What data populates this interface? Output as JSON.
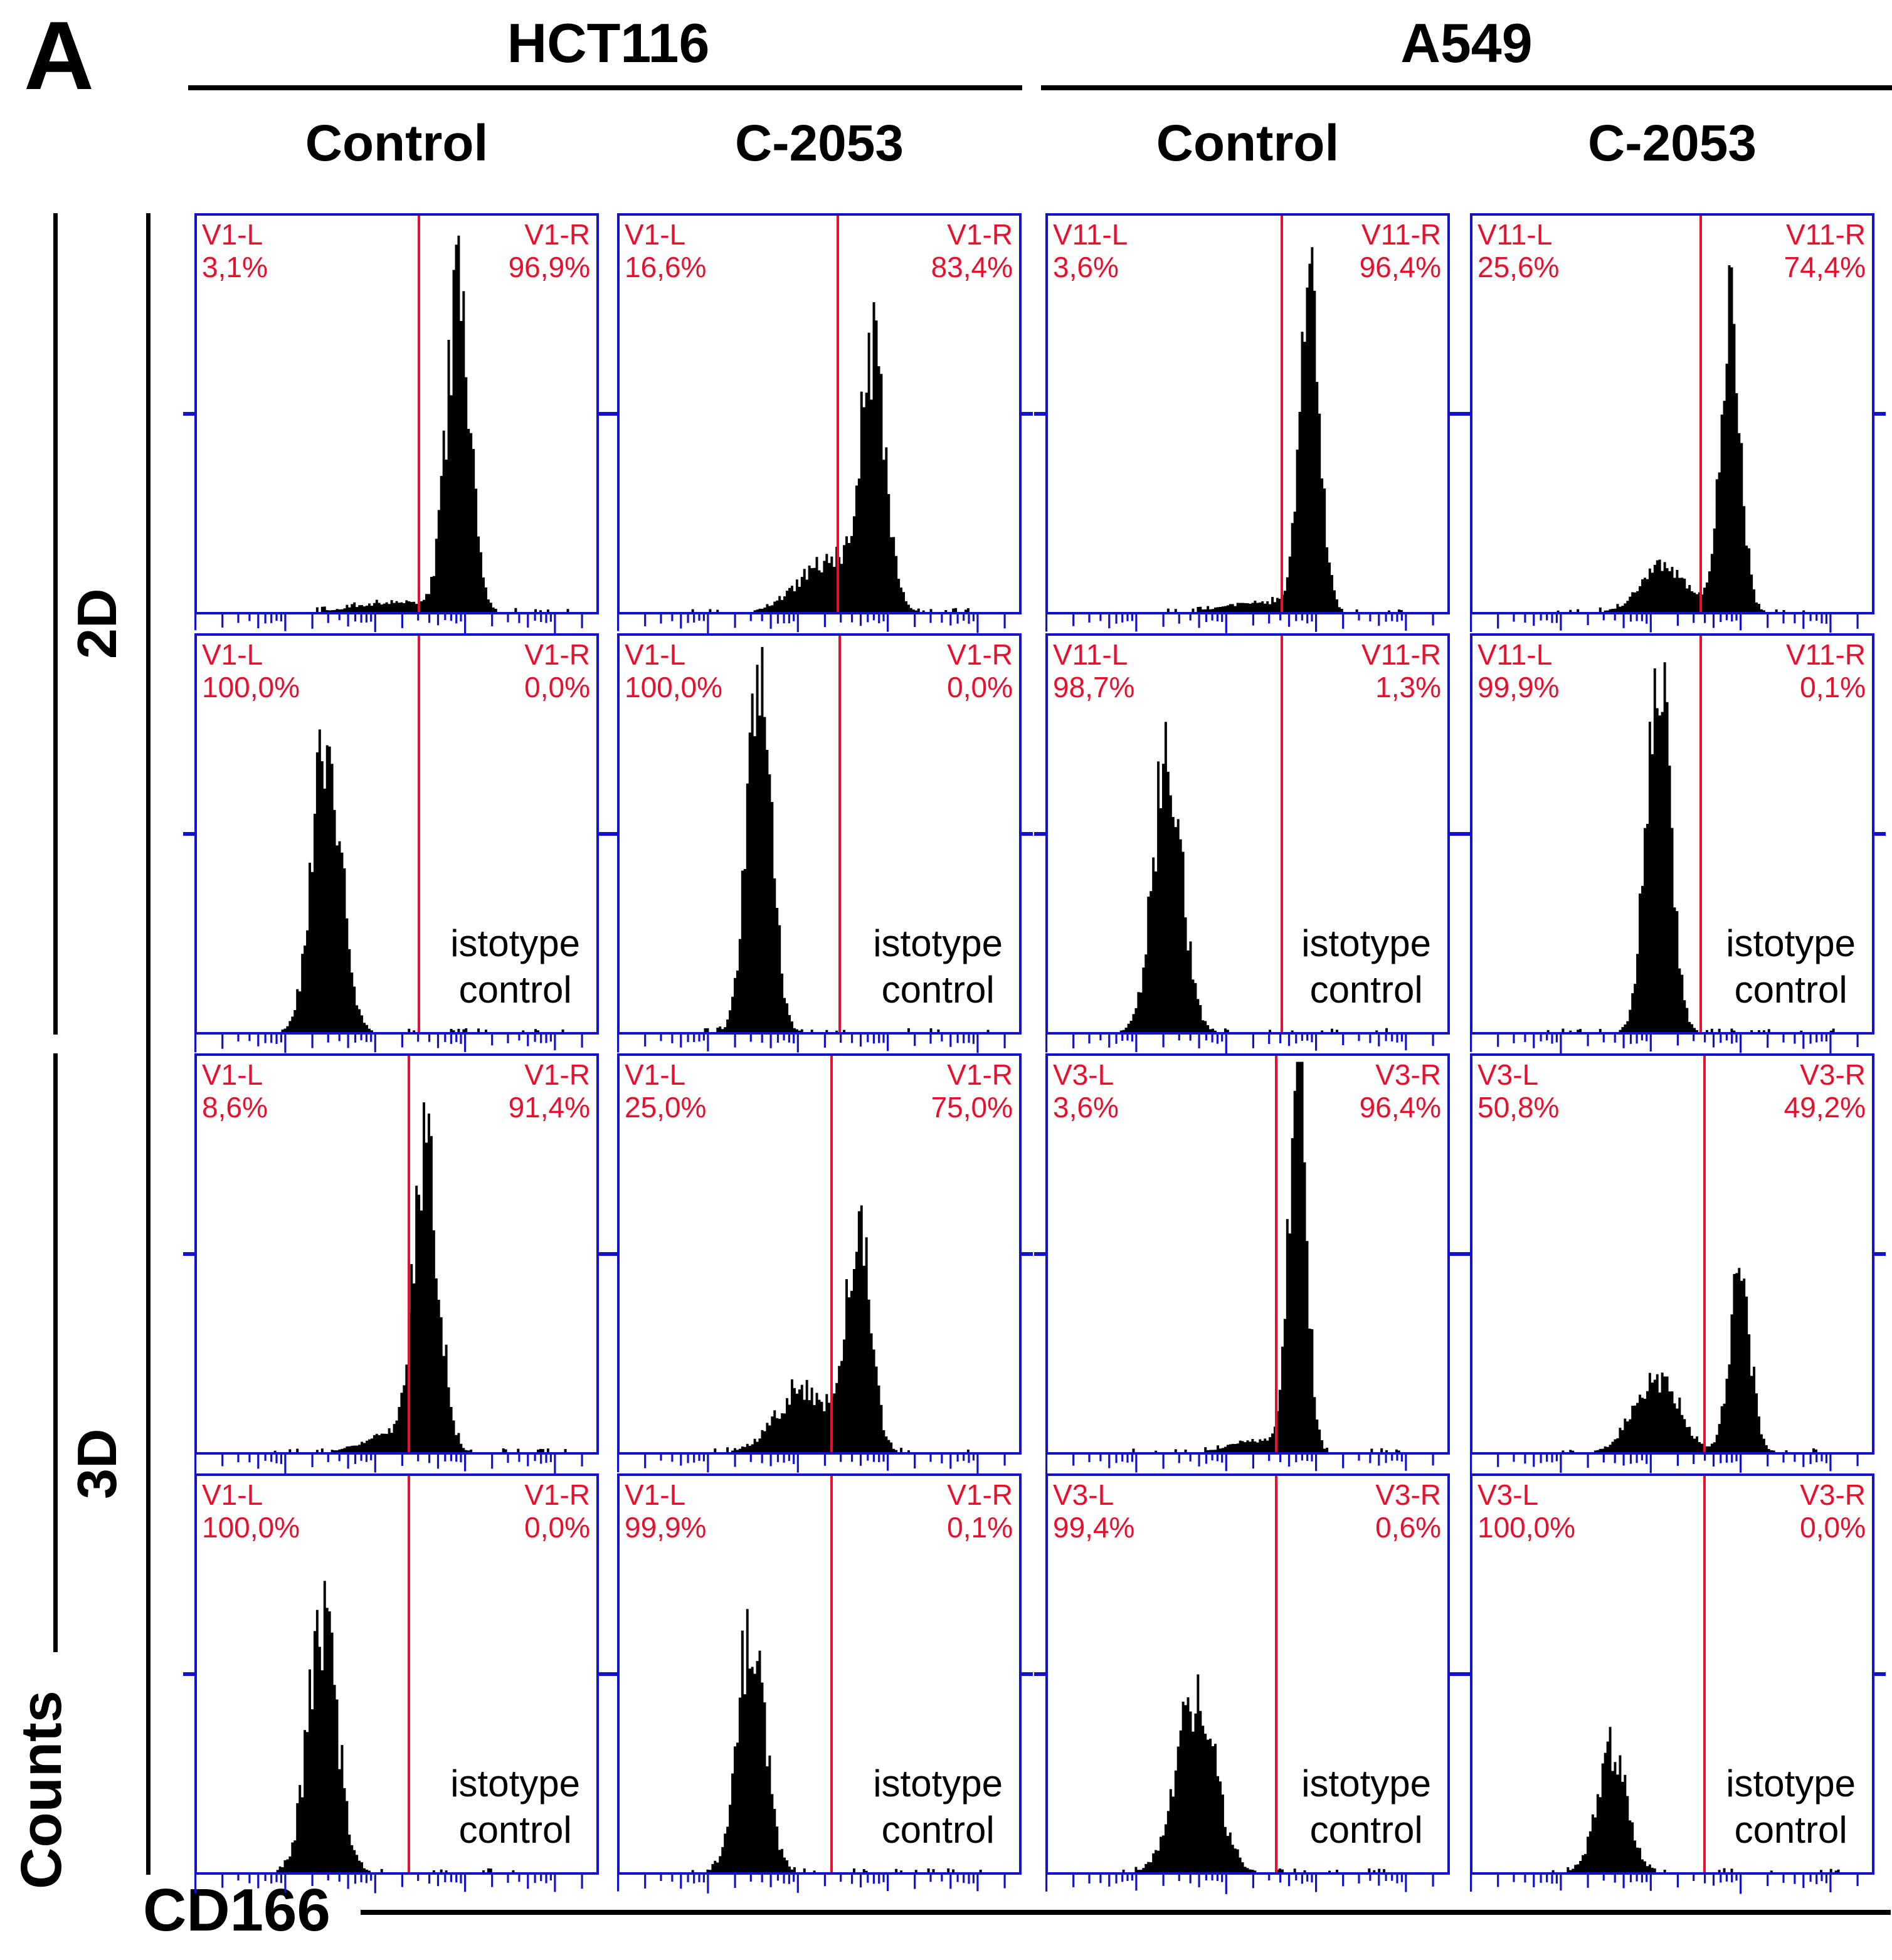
{
  "figure": {
    "panel_letter": "A",
    "cell_lines": [
      {
        "name": "HCT116"
      },
      {
        "name": "A549"
      }
    ],
    "treatments": [
      {
        "label": "Control"
      },
      {
        "label": "C-2053"
      },
      {
        "label": "Control"
      },
      {
        "label": "C-2053"
      }
    ],
    "row_groups": [
      {
        "label": "2D"
      },
      {
        "label": "3D"
      }
    ],
    "y_axis_label": "Counts",
    "x_axis_label": "CD166",
    "isotype_note_line1": "istotype",
    "isotype_note_line2": "control"
  },
  "colors": {
    "gate_red": "#e8112d",
    "frame_blue": "#1212cc",
    "histogram_black": "#000000",
    "text_black": "#000000"
  },
  "chart_data": [
    {
      "type": "histogram",
      "cell_line": "HCT116",
      "treatment": "Control",
      "culture": "2D",
      "isotype_control": false,
      "xlabel": "CD166",
      "ylabel": "Counts",
      "gates": {
        "left": {
          "name": "V1-L",
          "percent": "3,1%"
        },
        "right": {
          "name": "V1-R",
          "percent": "96,9%"
        }
      },
      "gate_x_fraction": 0.555,
      "peaks": [
        {
          "center": 0.655,
          "sigma": 0.03,
          "height": 0.8
        },
        {
          "center": 0.5,
          "sigma": 0.09,
          "height": 0.025
        }
      ]
    },
    {
      "type": "histogram",
      "cell_line": "HCT116",
      "treatment": "C-2053",
      "culture": "2D",
      "isotype_control": false,
      "xlabel": "CD166",
      "ylabel": "Counts",
      "gates": {
        "left": {
          "name": "V1-L",
          "percent": "16,6%"
        },
        "right": {
          "name": "V1-R",
          "percent": "83,4%"
        }
      },
      "gate_x_fraction": 0.545,
      "peaks": [
        {
          "center": 0.635,
          "sigma": 0.032,
          "height": 0.62
        },
        {
          "center": 0.52,
          "sigma": 0.07,
          "height": 0.13
        }
      ]
    },
    {
      "type": "histogram",
      "cell_line": "A549",
      "treatment": "Control",
      "culture": "2D",
      "isotype_control": false,
      "xlabel": "CD166",
      "ylabel": "Counts",
      "gates": {
        "left": {
          "name": "V11-L",
          "percent": "3,6%"
        },
        "right": {
          "name": "V11-R",
          "percent": "96,4%"
        }
      },
      "gate_x_fraction": 0.585,
      "peaks": [
        {
          "center": 0.655,
          "sigma": 0.026,
          "height": 0.79
        },
        {
          "center": 0.53,
          "sigma": 0.08,
          "height": 0.025
        }
      ]
    },
    {
      "type": "histogram",
      "cell_line": "A549",
      "treatment": "C-2053",
      "culture": "2D",
      "isotype_control": false,
      "xlabel": "CD166",
      "ylabel": "Counts",
      "gates": {
        "left": {
          "name": "V11-L",
          "percent": "25,6%"
        },
        "right": {
          "name": "V11-R",
          "percent": "74,4%"
        }
      },
      "gate_x_fraction": 0.57,
      "peaks": [
        {
          "center": 0.645,
          "sigma": 0.026,
          "height": 0.73
        },
        {
          "center": 0.48,
          "sigma": 0.055,
          "height": 0.12
        }
      ]
    },
    {
      "type": "histogram",
      "cell_line": "HCT116",
      "treatment": "Control",
      "culture": "2D",
      "isotype_control": true,
      "xlabel": "CD166",
      "ylabel": "Counts",
      "gates": {
        "left": {
          "name": "V1-L",
          "percent": "100,0%"
        },
        "right": {
          "name": "V1-R",
          "percent": "0,0%"
        }
      },
      "gate_x_fraction": 0.555,
      "peaks": [
        {
          "center": 0.325,
          "sigma": 0.036,
          "height": 0.73
        }
      ]
    },
    {
      "type": "histogram",
      "cell_line": "HCT116",
      "treatment": "C-2053",
      "culture": "2D",
      "isotype_control": true,
      "xlabel": "CD166",
      "ylabel": "Counts",
      "gates": {
        "left": {
          "name": "V1-L",
          "percent": "100,0%"
        },
        "right": {
          "name": "V1-R",
          "percent": "0,0%"
        }
      },
      "gate_x_fraction": 0.55,
      "peaks": [
        {
          "center": 0.35,
          "sigma": 0.03,
          "height": 0.92
        }
      ]
    },
    {
      "type": "histogram",
      "cell_line": "A549",
      "treatment": "Control",
      "culture": "2D",
      "isotype_control": true,
      "xlabel": "CD166",
      "ylabel": "Counts",
      "gates": {
        "left": {
          "name": "V11-L",
          "percent": "98,7%"
        },
        "right": {
          "name": "V11-R",
          "percent": "1,3%"
        }
      },
      "gate_x_fraction": 0.585,
      "peaks": [
        {
          "center": 0.3,
          "sigma": 0.036,
          "height": 0.71
        }
      ]
    },
    {
      "type": "histogram",
      "cell_line": "A549",
      "treatment": "C-2053",
      "culture": "2D",
      "isotype_control": true,
      "xlabel": "CD166",
      "ylabel": "Counts",
      "gates": {
        "left": {
          "name": "V11-L",
          "percent": "99,9%"
        },
        "right": {
          "name": "V11-R",
          "percent": "0,1%"
        }
      },
      "gate_x_fraction": 0.57,
      "peaks": [
        {
          "center": 0.465,
          "sigma": 0.03,
          "height": 0.92
        }
      ]
    },
    {
      "type": "histogram",
      "cell_line": "HCT116",
      "treatment": "Control",
      "culture": "3D",
      "isotype_control": false,
      "xlabel": "CD166",
      "ylabel": "Counts",
      "gates": {
        "left": {
          "name": "V1-L",
          "percent": "8,6%"
        },
        "right": {
          "name": "V1-R",
          "percent": "91,4%"
        }
      },
      "gate_x_fraction": 0.53,
      "peaks": [
        {
          "center": 0.575,
          "sigma": 0.032,
          "height": 0.74
        },
        {
          "center": 0.47,
          "sigma": 0.06,
          "height": 0.04
        }
      ]
    },
    {
      "type": "histogram",
      "cell_line": "HCT116",
      "treatment": "C-2053",
      "culture": "3D",
      "isotype_control": false,
      "xlabel": "CD166",
      "ylabel": "Counts",
      "gates": {
        "left": {
          "name": "V1-L",
          "percent": "25,0%"
        },
        "right": {
          "name": "V1-R",
          "percent": "75,0%"
        }
      },
      "gate_x_fraction": 0.53,
      "peaks": [
        {
          "center": 0.6,
          "sigma": 0.03,
          "height": 0.56
        },
        {
          "center": 0.46,
          "sigma": 0.065,
          "height": 0.16
        }
      ]
    },
    {
      "type": "histogram",
      "cell_line": "A549",
      "treatment": "Control",
      "culture": "3D",
      "isotype_control": false,
      "xlabel": "CD166",
      "ylabel": "Counts",
      "gates": {
        "left": {
          "name": "V3-L",
          "percent": "3,6%"
        },
        "right": {
          "name": "V3-R",
          "percent": "96,4%"
        }
      },
      "gate_x_fraction": 0.57,
      "peaks": [
        {
          "center": 0.625,
          "sigma": 0.022,
          "height": 1.0
        },
        {
          "center": 0.52,
          "sigma": 0.06,
          "height": 0.03
        }
      ]
    },
    {
      "type": "histogram",
      "cell_line": "A549",
      "treatment": "C-2053",
      "culture": "3D",
      "isotype_control": false,
      "xlabel": "CD166",
      "ylabel": "Counts",
      "gates": {
        "left": {
          "name": "V3-L",
          "percent": "50,8%"
        },
        "right": {
          "name": "V3-R",
          "percent": "49,2%"
        }
      },
      "gate_x_fraction": 0.58,
      "peaks": [
        {
          "center": 0.67,
          "sigma": 0.026,
          "height": 0.44
        },
        {
          "center": 0.46,
          "sigma": 0.055,
          "height": 0.19
        }
      ]
    },
    {
      "type": "histogram",
      "cell_line": "HCT116",
      "treatment": "Control",
      "culture": "3D",
      "isotype_control": true,
      "xlabel": "CD166",
      "ylabel": "Counts",
      "gates": {
        "left": {
          "name": "V1-L",
          "percent": "100,0%"
        },
        "right": {
          "name": "V1-R",
          "percent": "0,0%"
        }
      },
      "gate_x_fraction": 0.53,
      "peaks": [
        {
          "center": 0.315,
          "sigma": 0.036,
          "height": 0.65
        }
      ]
    },
    {
      "type": "histogram",
      "cell_line": "HCT116",
      "treatment": "C-2053",
      "culture": "3D",
      "isotype_control": true,
      "xlabel": "CD166",
      "ylabel": "Counts",
      "gates": {
        "left": {
          "name": "V1-L",
          "percent": "99,9%"
        },
        "right": {
          "name": "V1-R",
          "percent": "0,1%"
        }
      },
      "gate_x_fraction": 0.53,
      "peaks": [
        {
          "center": 0.33,
          "sigma": 0.034,
          "height": 0.62
        }
      ]
    },
    {
      "type": "histogram",
      "cell_line": "A549",
      "treatment": "Control",
      "culture": "3D",
      "isotype_control": true,
      "xlabel": "CD166",
      "ylabel": "Counts",
      "gates": {
        "left": {
          "name": "V3-L",
          "percent": "99,4%"
        },
        "right": {
          "name": "V3-R",
          "percent": "0,6%"
        }
      },
      "gate_x_fraction": 0.57,
      "peaks": [
        {
          "center": 0.37,
          "sigma": 0.048,
          "height": 0.45
        }
      ]
    },
    {
      "type": "histogram",
      "cell_line": "A549",
      "treatment": "C-2053",
      "culture": "3D",
      "isotype_control": true,
      "xlabel": "CD166",
      "ylabel": "Counts",
      "gates": {
        "left": {
          "name": "V3-L",
          "percent": "100,0%"
        },
        "right": {
          "name": "V3-R",
          "percent": "0,0%"
        }
      },
      "gate_x_fraction": 0.58,
      "peaks": [
        {
          "center": 0.35,
          "sigma": 0.036,
          "height": 0.32
        }
      ]
    }
  ]
}
